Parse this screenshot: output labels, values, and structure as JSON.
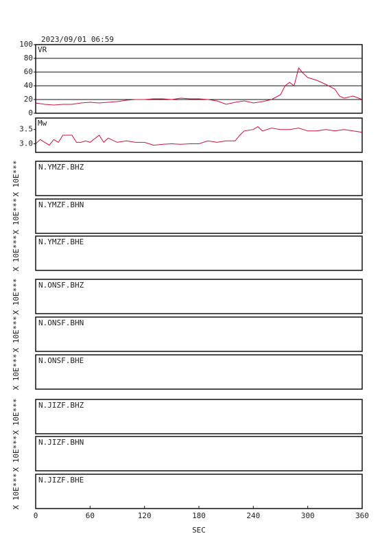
{
  "chart_data": [
    {
      "type": "line",
      "title": "2023/09/01 06:59",
      "ylabel": "VR",
      "color": "#d0103a",
      "xlim": [
        0,
        360
      ],
      "ylim": [
        0,
        100
      ],
      "yticks": [
        0,
        20,
        40,
        60,
        80,
        100
      ],
      "grid": true,
      "x": [
        0,
        10,
        20,
        30,
        40,
        50,
        60,
        70,
        80,
        90,
        100,
        110,
        120,
        130,
        140,
        150,
        160,
        170,
        180,
        190,
        200,
        210,
        220,
        230,
        240,
        250,
        260,
        270,
        275,
        280,
        285,
        290,
        295,
        300,
        310,
        320,
        330,
        335,
        340,
        350,
        360
      ],
      "values": [
        15,
        13,
        12,
        13,
        13,
        15,
        16,
        15,
        16,
        17,
        19,
        20,
        20,
        21,
        21,
        20,
        22,
        21,
        21,
        20,
        18,
        13,
        16,
        18,
        15,
        17,
        20,
        27,
        40,
        45,
        40,
        66,
        58,
        52,
        48,
        42,
        35,
        25,
        22,
        25,
        20
      ]
    },
    {
      "type": "line",
      "ylabel": "Mw",
      "color": "#d0103a",
      "xlim": [
        0,
        360
      ],
      "ylim": [
        2.7,
        3.9
      ],
      "yticks": [
        {
          "value": 3.0,
          "label": "3.0"
        },
        3.5
      ],
      "grid": false,
      "x": [
        0,
        5,
        10,
        15,
        20,
        25,
        30,
        40,
        45,
        50,
        55,
        60,
        70,
        75,
        80,
        90,
        100,
        110,
        120,
        130,
        140,
        150,
        160,
        170,
        180,
        190,
        200,
        210,
        220,
        225,
        230,
        240,
        245,
        250,
        260,
        270,
        280,
        290,
        300,
        310,
        320,
        330,
        340,
        350,
        360
      ],
      "values": [
        3.0,
        3.15,
        3.05,
        2.95,
        3.15,
        3.05,
        3.3,
        3.3,
        3.05,
        3.05,
        3.1,
        3.05,
        3.3,
        3.05,
        3.2,
        3.05,
        3.1,
        3.05,
        3.05,
        2.95,
        2.98,
        3.0,
        2.98,
        3.0,
        3.0,
        3.1,
        3.05,
        3.1,
        3.1,
        3.3,
        3.45,
        3.5,
        3.6,
        3.45,
        3.55,
        3.5,
        3.5,
        3.55,
        3.45,
        3.45,
        3.5,
        3.45,
        3.5,
        3.45,
        3.4
      ]
    }
  ],
  "panels": [
    {
      "label": "N.YMZF.BHZ",
      "y_label": "X 10E***"
    },
    {
      "label": "N.YMZF.BHN",
      "y_label": "X 10E***"
    },
    {
      "label": "N.YMZF.BHE",
      "y_label": "X 10E***"
    },
    {
      "label": "N.ONSF.BHZ",
      "y_label": "X 10E***"
    },
    {
      "label": "N.ONSF.BHN",
      "y_label": "X 10E***"
    },
    {
      "label": "N.ONSF.BHE",
      "y_label": "X 10E***"
    },
    {
      "label": "N.JIZF.BHZ",
      "y_label": "X 10E***"
    },
    {
      "label": "N.JIZF.BHN",
      "y_label": "X 10E***"
    },
    {
      "label": "N.JIZF.BHE",
      "y_label": "X 10E***"
    }
  ],
  "time_axis": {
    "label": "SEC",
    "xlim": [
      0,
      360
    ],
    "xticks": [
      0,
      60,
      120,
      180,
      240,
      300,
      360
    ]
  }
}
